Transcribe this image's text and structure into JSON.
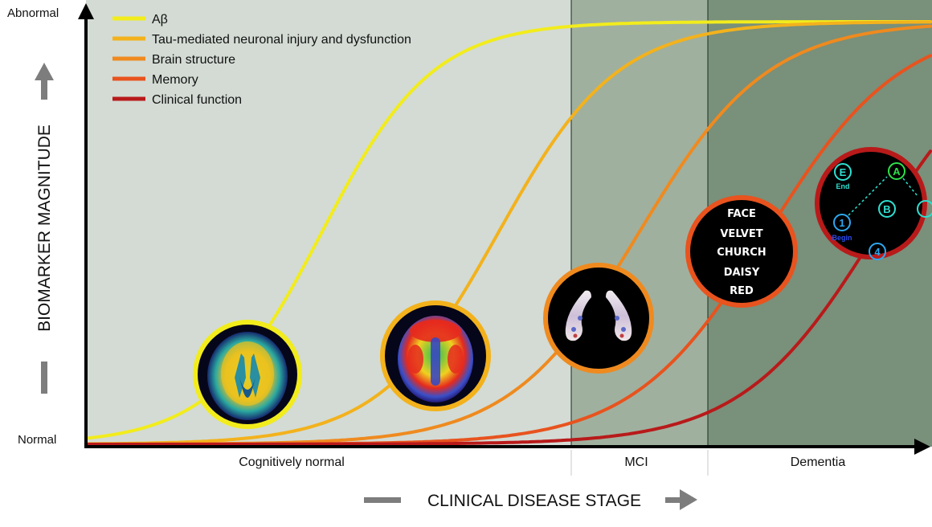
{
  "chart_data": {
    "type": "line",
    "title": "",
    "xlabel": "CLINICAL DISEASE STAGE",
    "ylabel": "BIOMARKER MAGNITUDE",
    "y_low_label": "Normal",
    "y_high_label": "Abnormal",
    "stages": [
      "Cognitively normal",
      "MCI",
      "Dementia"
    ],
    "legend_placement": "top-left",
    "grid": false,
    "series": [
      {
        "name": "Aβ",
        "color": "#f2ec1c"
      },
      {
        "name": "Tau-mediated neuronal injury and dysfunction",
        "color": "#f3b21c"
      },
      {
        "name": "Brain structure",
        "color": "#ef8a1f"
      },
      {
        "name": "Memory",
        "color": "#e8531e"
      },
      {
        "name": "Clinical function",
        "color": "#b81a1a"
      }
    ]
  },
  "memory_words": [
    "FACE",
    "VELVET",
    "CHURCH",
    "DAISY",
    "RED"
  ],
  "trail_labels": {
    "e": "E",
    "end": "End",
    "a": "A",
    "b": "B",
    "one": "1",
    "begin": "Begin",
    "four": "4"
  }
}
